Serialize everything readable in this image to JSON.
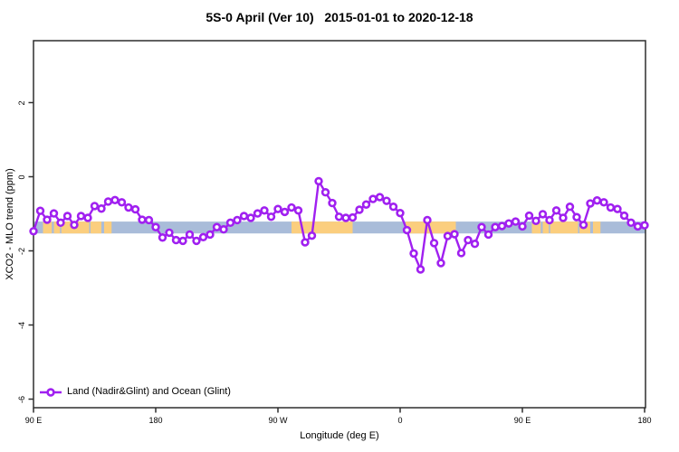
{
  "chart_data": {
    "type": "line",
    "title": "5S-0 April (Ver 10)   2015-01-01 to 2020-12-18",
    "xlabel": "Longitude (deg E)",
    "ylabel": "XCO2 - MLO trend (ppm)",
    "xlim": [
      90,
      540
    ],
    "ylim": [
      -6.25,
      3.7
    ],
    "grid": false,
    "frame_color": "#2e2e2e",
    "x_ticks": [
      {
        "lon": 90,
        "label": "90 E"
      },
      {
        "lon": 180,
        "label": "180"
      },
      {
        "lon": 270,
        "label": "90 W"
      },
      {
        "lon": 360,
        "label": "0"
      },
      {
        "lon": 450,
        "label": "90 E"
      },
      {
        "lon": 540,
        "label": "180"
      }
    ],
    "y_ticks": [
      {
        "value": 2,
        "label": "2"
      },
      {
        "value": 0,
        "label": "0"
      },
      {
        "value": -2,
        "label": "-2"
      },
      {
        "value": -4,
        "label": "-4"
      },
      {
        "value": -6,
        "label": "-6"
      }
    ],
    "legend": {
      "label": "Land (Nadir&Glint) and Ocean (Glint)",
      "position": "bottom-left"
    },
    "map_band": {
      "description": "world map strip for latitude band 5S-0, ocean blue with land patches",
      "ocean_color": "#a9bcd9",
      "land_color": "#fbce7e",
      "y_range": [
        -1.21,
        -1.53
      ],
      "land_patches_lon": [
        [
          97,
          103.5
        ],
        [
          105,
          109.5
        ],
        [
          110.5,
          131
        ],
        [
          132,
          140
        ],
        [
          142,
          147.5
        ],
        [
          280,
          325
        ],
        [
          364,
          401
        ],
        [
          457,
          463.5
        ],
        [
          465,
          469.5
        ],
        [
          470.5,
          491
        ],
        [
          492,
          500
        ],
        [
          502,
          507.5
        ]
      ]
    },
    "series": [
      {
        "name": "Land (Nadir&Glint) and Ocean (Glint)",
        "color": "#a020f0",
        "marker": "open-circle",
        "x": [
          90,
          95,
          100,
          105,
          110,
          115,
          120,
          125,
          130,
          135,
          140,
          145,
          150,
          155,
          160,
          165,
          170,
          175,
          180,
          185,
          190,
          195,
          200,
          205,
          210,
          215,
          220,
          225,
          230,
          235,
          240,
          245,
          250,
          255,
          260,
          265,
          270,
          275,
          280,
          285,
          290,
          295,
          300,
          305,
          310,
          315,
          320,
          325,
          330,
          335,
          340,
          345,
          350,
          355,
          360,
          365,
          370,
          375,
          380,
          385,
          390,
          395,
          400,
          405,
          410,
          415,
          420,
          425,
          430,
          435,
          440,
          445,
          450,
          455,
          460,
          465,
          470,
          475,
          480,
          485,
          490,
          495,
          500,
          505,
          510,
          515,
          520,
          525,
          530,
          535,
          540
        ],
        "y": [
          -1.47,
          -0.92,
          -1.16,
          -0.99,
          -1.24,
          -1.06,
          -1.3,
          -1.06,
          -1.11,
          -0.79,
          -0.86,
          -0.67,
          -0.63,
          -0.69,
          -0.83,
          -0.88,
          -1.16,
          -1.17,
          -1.36,
          -1.64,
          -1.51,
          -1.71,
          -1.73,
          -1.56,
          -1.73,
          -1.63,
          -1.56,
          -1.36,
          -1.42,
          -1.24,
          -1.17,
          -1.06,
          -1.11,
          -0.99,
          -0.91,
          -1.08,
          -0.87,
          -0.95,
          -0.83,
          -0.91,
          -1.77,
          -1.59,
          -0.12,
          -0.42,
          -0.71,
          -1.08,
          -1.11,
          -1.1,
          -0.89,
          -0.75,
          -0.6,
          -0.55,
          -0.65,
          -0.81,
          -0.98,
          -1.44,
          -2.07,
          -2.5,
          -1.17,
          -1.79,
          -2.33,
          -1.6,
          -1.55,
          -2.06,
          -1.71,
          -1.81,
          -1.36,
          -1.56,
          -1.36,
          -1.33,
          -1.26,
          -1.21,
          -1.34,
          -1.05,
          -1.19,
          -1.01,
          -1.17,
          -0.91,
          -1.11,
          -0.81,
          -1.09,
          -1.3,
          -0.72,
          -0.64,
          -0.69,
          -0.83,
          -0.87,
          -1.05,
          -1.24,
          -1.34,
          -1.31
        ]
      }
    ]
  }
}
